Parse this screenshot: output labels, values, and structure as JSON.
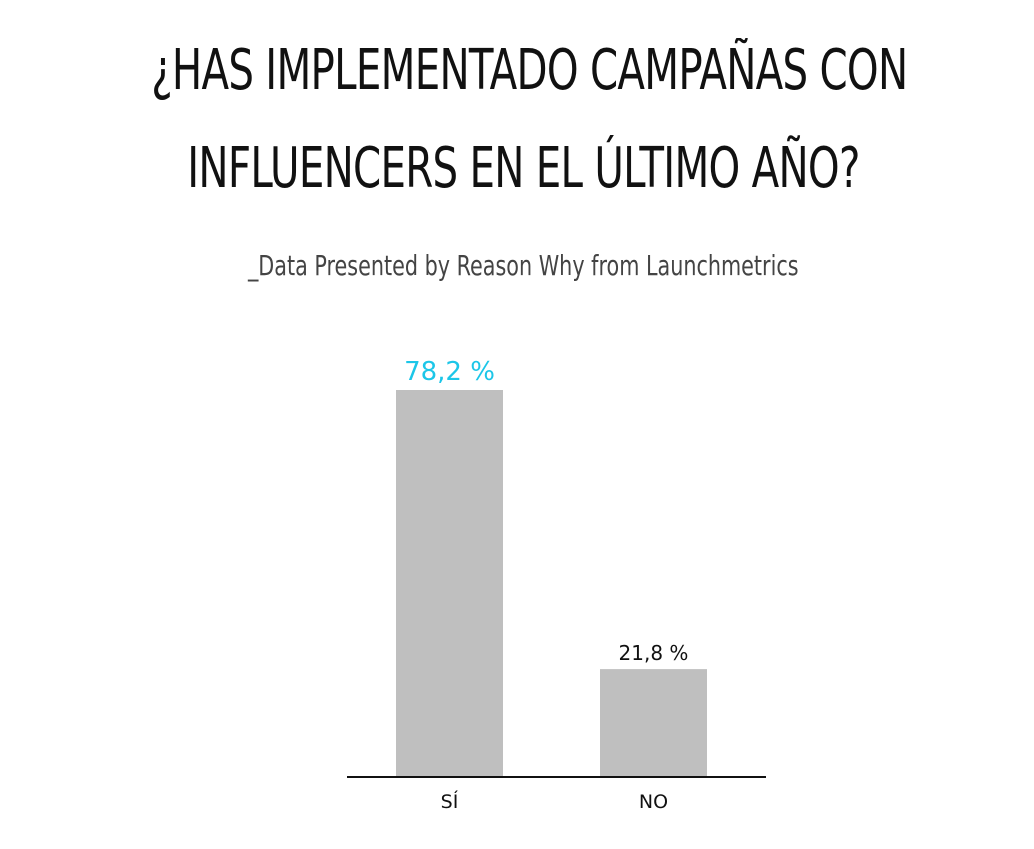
{
  "title_lines": [
    "¿HAS IMPLEMENTADO CAMPAÑAS CON",
    "INFLUENCERS EN EL ÚLTIMO AÑO?"
  ],
  "subtitle": "_Data Presented by Reason Why from Launchmetrics",
  "chart_data": {
    "type": "bar",
    "title": "¿HAS IMPLEMENTADO CAMPAÑAS CON INFLUENCERS EN EL ÚLTIMO AÑO?",
    "subtitle": "_Data Presented by Reason Why from Launchmetrics",
    "categories": [
      "SÍ",
      "NO"
    ],
    "values": [
      78.2,
      21.8
    ],
    "value_labels": [
      "78,2 %",
      "21,8 %"
    ],
    "unit": "%",
    "xlabel": "",
    "ylabel": "",
    "ylim": [
      0,
      100
    ],
    "grid": false,
    "legend": "none",
    "colors": {
      "bar": "#bfbfbf",
      "axis": "#111111",
      "highlight_label": "#1cc6e8",
      "label": "#111111",
      "tick_label": "#111111"
    },
    "highlight_index": 0
  }
}
